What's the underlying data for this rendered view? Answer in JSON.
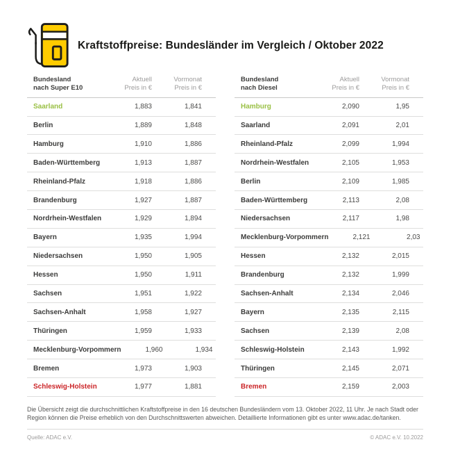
{
  "header": {
    "title": "Kraftstoffpreise: Bundesländer im Vergleich / Oktober 2022",
    "icon": "fuel-pump-icon"
  },
  "colors": {
    "accent_yellow": "#FFCC00",
    "outline_dark": "#1d1d1b",
    "best_green": "#9AC045",
    "worst_red": "#CB2427",
    "text_dark": "#3C3C3B",
    "muted_gray": "#9C9B9B"
  },
  "tables": [
    {
      "header": {
        "line1": "Bundesland",
        "prefix": "nach ",
        "fuel": "Super E10",
        "aktuell1": "Aktuell",
        "aktuell2": "Preis in €",
        "vormonat1": "Vormonat",
        "vormonat2": "Preis in €"
      },
      "rows": [
        {
          "name": "Saarland",
          "aktuell": "1,883",
          "vormonat": "1,841",
          "highlight": "green"
        },
        {
          "name": "Berlin",
          "aktuell": "1,889",
          "vormonat": "1,848",
          "highlight": null
        },
        {
          "name": "Hamburg",
          "aktuell": "1,910",
          "vormonat": "1,886",
          "highlight": null
        },
        {
          "name": "Baden-Württemberg",
          "aktuell": "1,913",
          "vormonat": "1,887",
          "highlight": null
        },
        {
          "name": "Rheinland-Pfalz",
          "aktuell": "1,918",
          "vormonat": "1,886",
          "highlight": null
        },
        {
          "name": "Brandenburg",
          "aktuell": "1,927",
          "vormonat": "1,887",
          "highlight": null
        },
        {
          "name": "Nordrhein-Westfalen",
          "aktuell": "1,929",
          "vormonat": "1,894",
          "highlight": null
        },
        {
          "name": "Bayern",
          "aktuell": "1,935",
          "vormonat": "1,994",
          "highlight": null
        },
        {
          "name": "Niedersachsen",
          "aktuell": "1,950",
          "vormonat": "1,905",
          "highlight": null
        },
        {
          "name": "Hessen",
          "aktuell": "1,950",
          "vormonat": "1,911",
          "highlight": null
        },
        {
          "name": "Sachsen",
          "aktuell": "1,951",
          "vormonat": "1,922",
          "highlight": null
        },
        {
          "name": "Sachsen-Anhalt",
          "aktuell": "1,958",
          "vormonat": "1,927",
          "highlight": null
        },
        {
          "name": "Thüringen",
          "aktuell": "1,959",
          "vormonat": "1,933",
          "highlight": null
        },
        {
          "name": "Mecklenburg-Vorpommern",
          "aktuell": "1,960",
          "vormonat": "1,934",
          "highlight": null
        },
        {
          "name": "Bremen",
          "aktuell": "1,973",
          "vormonat": "1,903",
          "highlight": null
        },
        {
          "name": "Schleswig-Holstein",
          "aktuell": "1,977",
          "vormonat": "1,881",
          "highlight": "red"
        }
      ]
    },
    {
      "header": {
        "line1": "Bundesland",
        "prefix": "nach ",
        "fuel": "Diesel",
        "aktuell1": "Aktuell",
        "aktuell2": "Preis in €",
        "vormonat1": "Vormonat",
        "vormonat2": "Preis in €"
      },
      "rows": [
        {
          "name": "Hamburg",
          "aktuell": "2,090",
          "vormonat": "1,95",
          "highlight": "green"
        },
        {
          "name": "Saarland",
          "aktuell": "2,091",
          "vormonat": "2,01",
          "highlight": null
        },
        {
          "name": "Rheinland-Pfalz",
          "aktuell": "2,099",
          "vormonat": "1,994",
          "highlight": null
        },
        {
          "name": "Nordrhein-Westfalen",
          "aktuell": "2,105",
          "vormonat": "1,953",
          "highlight": null
        },
        {
          "name": "Berlin",
          "aktuell": "2,109",
          "vormonat": "1,985",
          "highlight": null
        },
        {
          "name": "Baden-Württemberg",
          "aktuell": "2,113",
          "vormonat": "2,08",
          "highlight": null
        },
        {
          "name": "Niedersachsen",
          "aktuell": "2,117",
          "vormonat": "1,98",
          "highlight": null
        },
        {
          "name": "Mecklenburg-Vorpommern",
          "aktuell": "2,121",
          "vormonat": "2,03",
          "highlight": null
        },
        {
          "name": "Hessen",
          "aktuell": "2,132",
          "vormonat": "2,015",
          "highlight": null
        },
        {
          "name": "Brandenburg",
          "aktuell": "2,132",
          "vormonat": "1,999",
          "highlight": null
        },
        {
          "name": "Sachsen-Anhalt",
          "aktuell": "2,134",
          "vormonat": "2,046",
          "highlight": null
        },
        {
          "name": "Bayern",
          "aktuell": "2,135",
          "vormonat": "2,115",
          "highlight": null
        },
        {
          "name": "Sachsen",
          "aktuell": "2,139",
          "vormonat": "2,08",
          "highlight": null
        },
        {
          "name": "Schleswig-Holstein",
          "aktuell": "2,143",
          "vormonat": "1,992",
          "highlight": null
        },
        {
          "name": "Thüringen",
          "aktuell": "2,145",
          "vormonat": "2,071",
          "highlight": null
        },
        {
          "name": "Bremen",
          "aktuell": "2,159",
          "vormonat": "2,003",
          "highlight": "red"
        }
      ]
    }
  ],
  "chart_data": [
    {
      "type": "table",
      "title": "Bundesland nach Super E10 — Preis in €",
      "columns": [
        "Bundesland",
        "Aktuell Preis in €",
        "Vormonat Preis in €"
      ],
      "rows": [
        [
          "Saarland",
          1.883,
          1.841
        ],
        [
          "Berlin",
          1.889,
          1.848
        ],
        [
          "Hamburg",
          1.91,
          1.886
        ],
        [
          "Baden-Württemberg",
          1.913,
          1.887
        ],
        [
          "Rheinland-Pfalz",
          1.918,
          1.886
        ],
        [
          "Brandenburg",
          1.927,
          1.887
        ],
        [
          "Nordrhein-Westfalen",
          1.929,
          1.894
        ],
        [
          "Bayern",
          1.935,
          1.994
        ],
        [
          "Niedersachsen",
          1.95,
          1.905
        ],
        [
          "Hessen",
          1.95,
          1.911
        ],
        [
          "Sachsen",
          1.951,
          1.922
        ],
        [
          "Sachsen-Anhalt",
          1.958,
          1.927
        ],
        [
          "Thüringen",
          1.959,
          1.933
        ],
        [
          "Mecklenburg-Vorpommern",
          1.96,
          1.934
        ],
        [
          "Bremen",
          1.973,
          1.903
        ],
        [
          "Schleswig-Holstein",
          1.977,
          1.881
        ]
      ],
      "annotations": {
        "cheapest_green": "Saarland",
        "most_expensive_red": "Schleswig-Holstein"
      }
    },
    {
      "type": "table",
      "title": "Bundesland nach Diesel — Preis in €",
      "columns": [
        "Bundesland",
        "Aktuell Preis in €",
        "Vormonat Preis in €"
      ],
      "rows": [
        [
          "Hamburg",
          2.09,
          1.95
        ],
        [
          "Saarland",
          2.091,
          2.01
        ],
        [
          "Rheinland-Pfalz",
          2.099,
          1.994
        ],
        [
          "Nordrhein-Westfalen",
          2.105,
          1.953
        ],
        [
          "Berlin",
          2.109,
          1.985
        ],
        [
          "Baden-Württemberg",
          2.113,
          2.08
        ],
        [
          "Niedersachsen",
          2.117,
          1.98
        ],
        [
          "Mecklenburg-Vorpommern",
          2.121,
          2.03
        ],
        [
          "Hessen",
          2.132,
          2.015
        ],
        [
          "Brandenburg",
          2.132,
          1.999
        ],
        [
          "Sachsen-Anhalt",
          2.134,
          2.046
        ],
        [
          "Bayern",
          2.135,
          2.115
        ],
        [
          "Sachsen",
          2.139,
          2.08
        ],
        [
          "Schleswig-Holstein",
          2.143,
          1.992
        ],
        [
          "Thüringen",
          2.145,
          2.071
        ],
        [
          "Bremen",
          2.159,
          2.003
        ]
      ],
      "annotations": {
        "cheapest_green": "Hamburg",
        "most_expensive_red": "Bremen"
      }
    }
  ],
  "footnote": {
    "text": "Die Übersicht zeigt die durchschnittlichen Kraftstoffpreise in den 16 deutschen Bundesländern vom 13. Oktober 2022, 11 Uhr. Je nach Stadt oder Region können die Preise erheblich von den Durchschnittswerten abweichen. Detaillierte Informationen gibt es unter www.adac.de/tanken."
  },
  "footer": {
    "source": "Quelle: ADAC e.V.",
    "copyright": "© ADAC e.V. 10.2022"
  }
}
